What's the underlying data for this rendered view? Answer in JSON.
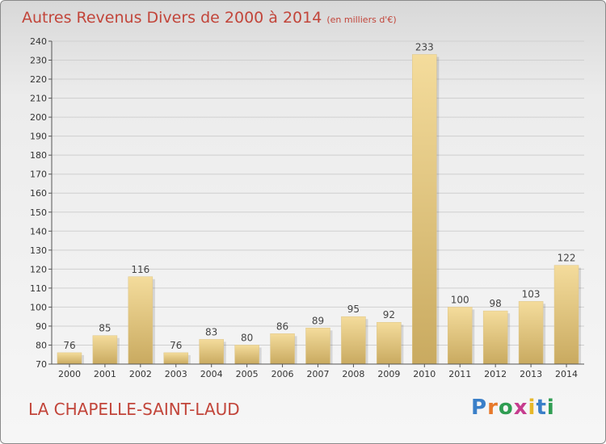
{
  "title": "Autres Revenus Divers de 2000 à 2014",
  "subtitle": "(en milliers d'€)",
  "commune": "LA CHAPELLE-SAINT-LAUD",
  "logo_text": "Proxiti",
  "logo_letter_colors": [
    "#3a7fc8",
    "#e7792b",
    "#2f9d52",
    "#c63c8e",
    "#e7b829",
    "#3a7fc8",
    "#2f9d52"
  ],
  "colors": {
    "title": "#c2453a",
    "bar_light": "#f4dc9c",
    "bar_dark": "#c9aa60",
    "grid": "#cfcfcf"
  },
  "chart_data": {
    "type": "bar",
    "categories": [
      "2000",
      "2001",
      "2002",
      "2003",
      "2004",
      "2005",
      "2006",
      "2007",
      "2008",
      "2009",
      "2010",
      "2011",
      "2012",
      "2013",
      "2014"
    ],
    "values": [
      76,
      85,
      116,
      76,
      83,
      80,
      86,
      89,
      95,
      92,
      233,
      100,
      98,
      103,
      122
    ],
    "ylim": [
      70,
      240
    ],
    "yticks": [
      70,
      80,
      90,
      100,
      110,
      120,
      130,
      140,
      150,
      160,
      170,
      180,
      190,
      200,
      210,
      220,
      230,
      240
    ],
    "grid": true
  }
}
